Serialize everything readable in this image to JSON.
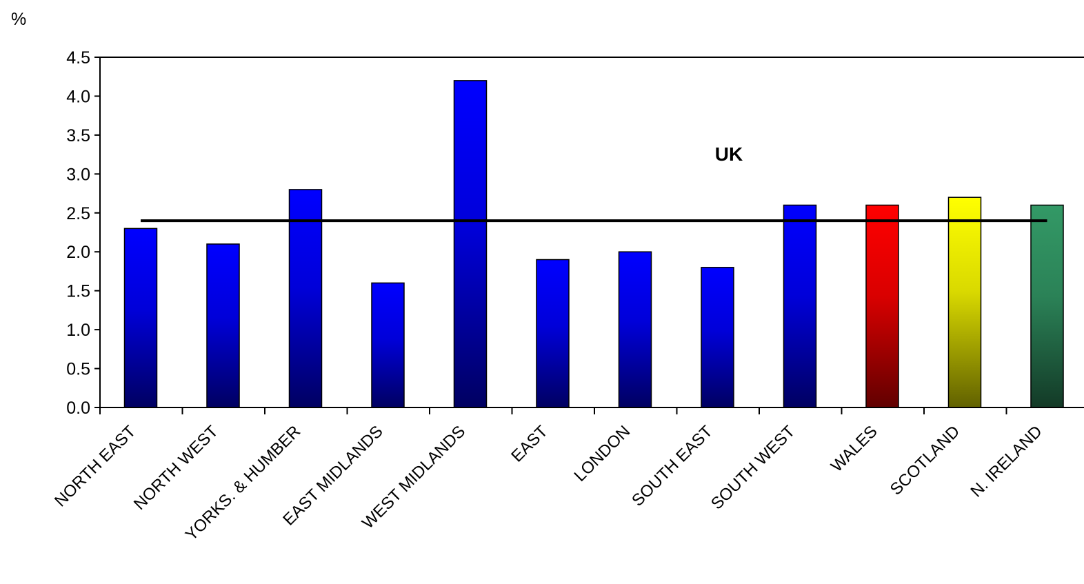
{
  "chart_data": {
    "type": "bar",
    "title": "",
    "xlabel": "",
    "ylabel": "%",
    "ylim": [
      0,
      4.5
    ],
    "yticks": [
      "0.0",
      "0.5",
      "1.0",
      "1.5",
      "2.0",
      "2.5",
      "3.0",
      "3.5",
      "4.0",
      "4.5"
    ],
    "grid": false,
    "categories": [
      "NORTH EAST",
      "NORTH WEST",
      "YORKS. & HUMBER",
      "EAST MIDLANDS",
      "WEST MIDLANDS",
      "EAST",
      "LONDON",
      "SOUTH EAST",
      "SOUTH WEST",
      "WALES",
      "SCOTLAND",
      "N. IRELAND"
    ],
    "values": [
      2.3,
      2.1,
      2.8,
      1.6,
      4.2,
      1.9,
      2.0,
      1.8,
      2.6,
      2.6,
      2.7,
      2.6
    ],
    "bar_colors": [
      "#0000ff",
      "#0000ff",
      "#0000ff",
      "#0000ff",
      "#0000ff",
      "#0000ff",
      "#0000ff",
      "#0000ff",
      "#0000ff",
      "#ff0000",
      "#ffff00",
      "#339966"
    ],
    "reference_line": {
      "label": "UK",
      "value": 2.4,
      "color": "#000000"
    }
  }
}
